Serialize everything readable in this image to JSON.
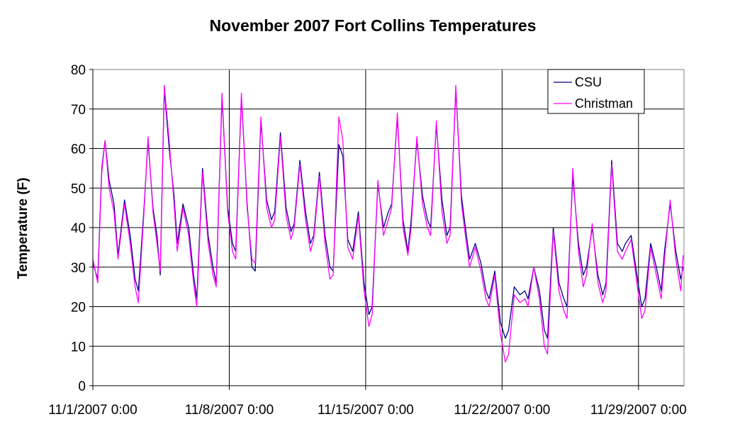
{
  "chart_data": {
    "type": "line",
    "title": "November 2007 Fort Collins Temperatures",
    "ylabel": "Temperature (F)",
    "xlabel": "",
    "ylim": [
      0,
      80
    ],
    "xlim": [
      "11/1/2007 0:00",
      "12/1/2007 8:00"
    ],
    "y_ticks": [
      "0",
      "10",
      "20",
      "30",
      "40",
      "50",
      "60",
      "70",
      "80"
    ],
    "x_ticks": [
      "11/1/2007 0:00",
      "11/8/2007 0:00",
      "11/15/2007 0:00",
      "11/22/2007 0:00",
      "11/29/2007 0:00"
    ],
    "grid": true,
    "legend_position": "top-right",
    "legend": [
      "CSU",
      "Christman"
    ],
    "series": [
      {
        "name": "CSU",
        "color": "#000080",
        "points": [
          [
            "11/1/2007 0:00",
            31
          ],
          [
            "11/1/2007 6:00",
            27
          ],
          [
            "11/1/2007 11:00",
            55
          ],
          [
            "11/1/2007 15:00",
            62
          ],
          [
            "11/1/2007 20:00",
            52
          ],
          [
            "11/2/2007 2:00",
            46
          ],
          [
            "11/2/2007 7:00",
            33
          ],
          [
            "11/2/2007 15:00",
            47
          ],
          [
            "11/2/2007 22:00",
            38
          ],
          [
            "11/3/2007 4:00",
            27
          ],
          [
            "11/3/2007 8:00",
            24
          ],
          [
            "11/3/2007 15:00",
            45
          ],
          [
            "11/3/2007 20:00",
            62
          ],
          [
            "11/4/2007 2:00",
            45
          ],
          [
            "11/4/2007 7:00",
            38
          ],
          [
            "11/4/2007 11:00",
            28
          ],
          [
            "11/4/2007 16:00",
            75
          ],
          [
            "11/4/2007 22:00",
            60
          ],
          [
            "11/5/2007 4:00",
            48
          ],
          [
            "11/5/2007 8:00",
            36
          ],
          [
            "11/5/2007 15:00",
            46
          ],
          [
            "11/5/2007 22:00",
            40
          ],
          [
            "11/6/2007 4:00",
            28
          ],
          [
            "11/6/2007 8:00",
            22
          ],
          [
            "11/6/2007 15:00",
            55
          ],
          [
            "11/6/2007 22:00",
            38
          ],
          [
            "11/7/2007 4:00",
            30
          ],
          [
            "11/7/2007 8:00",
            26
          ],
          [
            "11/7/2007 15:00",
            73
          ],
          [
            "11/7/2007 22:00",
            45
          ],
          [
            "11/8/2007 4:00",
            36
          ],
          [
            "11/8/2007 8:00",
            34
          ],
          [
            "11/8/2007 15:00",
            73
          ],
          [
            "11/8/2007 22:00",
            46
          ],
          [
            "11/9/2007 4:00",
            30
          ],
          [
            "11/9/2007 8:00",
            29
          ],
          [
            "11/9/2007 15:00",
            67
          ],
          [
            "11/9/2007 22:00",
            47
          ],
          [
            "11/10/2007 4:00",
            42
          ],
          [
            "11/10/2007 8:00",
            44
          ],
          [
            "11/10/2007 15:00",
            64
          ],
          [
            "11/10/2007 22:00",
            45
          ],
          [
            "11/11/2007 4:00",
            39
          ],
          [
            "11/11/2007 8:00",
            41
          ],
          [
            "11/11/2007 15:00",
            57
          ],
          [
            "11/11/2007 22:00",
            44
          ],
          [
            "11/12/2007 4:00",
            36
          ],
          [
            "11/12/2007 8:00",
            38
          ],
          [
            "11/12/2007 15:00",
            54
          ],
          [
            "11/12/2007 22:00",
            38
          ],
          [
            "11/13/2007 4:00",
            30
          ],
          [
            "11/13/2007 8:00",
            29
          ],
          [
            "11/13/2007 15:00",
            61
          ],
          [
            "11/13/2007 20:00",
            58
          ],
          [
            "11/14/2007 2:00",
            37
          ],
          [
            "11/14/2007 8:00",
            34
          ],
          [
            "11/14/2007 15:00",
            44
          ],
          [
            "11/14/2007 22:00",
            26
          ],
          [
            "11/15/2007 4:00",
            18
          ],
          [
            "11/15/2007 8:00",
            20
          ],
          [
            "11/15/2007 15:00",
            51
          ],
          [
            "11/15/2007 22:00",
            40
          ],
          [
            "11/16/2007 4:00",
            44
          ],
          [
            "11/16/2007 8:00",
            46
          ],
          [
            "11/16/2007 15:00",
            68
          ],
          [
            "11/16/2007 22:00",
            42
          ],
          [
            "11/17/2007 4:00",
            34
          ],
          [
            "11/17/2007 8:00",
            42
          ],
          [
            "11/17/2007 15:00",
            62
          ],
          [
            "11/17/2007 22:00",
            48
          ],
          [
            "11/18/2007 4:00",
            42
          ],
          [
            "11/18/2007 8:00",
            40
          ],
          [
            "11/18/2007 15:00",
            66
          ],
          [
            "11/18/2007 22:00",
            47
          ],
          [
            "11/19/2007 4:00",
            38
          ],
          [
            "11/19/2007 8:00",
            40
          ],
          [
            "11/19/2007 15:00",
            75
          ],
          [
            "11/19/2007 22:00",
            48
          ],
          [
            "11/20/2007 4:00",
            38
          ],
          [
            "11/20/2007 8:00",
            32
          ],
          [
            "11/20/2007 15:00",
            36
          ],
          [
            "11/20/2007 22:00",
            31
          ],
          [
            "11/21/2007 4:00",
            24
          ],
          [
            "11/21/2007 8:00",
            22
          ],
          [
            "11/21/2007 15:00",
            29
          ],
          [
            "11/21/2007 22:00",
            16
          ],
          [
            "11/22/2007 4:00",
            12
          ],
          [
            "11/22/2007 8:00",
            14
          ],
          [
            "11/22/2007 15:00",
            25
          ],
          [
            "11/22/2007 22:00",
            23
          ],
          [
            "11/23/2007 4:00",
            24
          ],
          [
            "11/23/2007 8:00",
            22
          ],
          [
            "11/23/2007 15:00",
            30
          ],
          [
            "11/23/2007 22:00",
            24
          ],
          [
            "11/24/2007 4:00",
            14
          ],
          [
            "11/24/2007 8:00",
            12
          ],
          [
            "11/24/2007 15:00",
            40
          ],
          [
            "11/24/2007 22:00",
            26
          ],
          [
            "11/25/2007 4:00",
            22
          ],
          [
            "11/25/2007 8:00",
            20
          ],
          [
            "11/25/2007 15:00",
            53
          ],
          [
            "11/25/2007 22:00",
            36
          ],
          [
            "11/26/2007 4:00",
            28
          ],
          [
            "11/26/2007 8:00",
            30
          ],
          [
            "11/26/2007 15:00",
            40
          ],
          [
            "11/26/2007 22:00",
            28
          ],
          [
            "11/27/2007 4:00",
            23
          ],
          [
            "11/27/2007 8:00",
            26
          ],
          [
            "11/27/2007 15:00",
            57
          ],
          [
            "11/27/2007 22:00",
            36
          ],
          [
            "11/28/2007 4:00",
            34
          ],
          [
            "11/28/2007 8:00",
            36
          ],
          [
            "11/28/2007 15:00",
            38
          ],
          [
            "11/28/2007 22:00",
            28
          ],
          [
            "11/29/2007 4:00",
            20
          ],
          [
            "11/29/2007 8:00",
            22
          ],
          [
            "11/29/2007 15:00",
            36
          ],
          [
            "11/29/2007 22:00",
            30
          ],
          [
            "11/30/2007 4:00",
            24
          ],
          [
            "11/30/2007 8:00",
            34
          ],
          [
            "11/30/2007 15:00",
            46
          ],
          [
            "11/30/2007 22:00",
            34
          ],
          [
            "12/1/2007 4:00",
            27
          ],
          [
            "12/1/2007 7:00",
            30
          ]
        ]
      },
      {
        "name": "Christman",
        "color": "#ff00ff",
        "points": [
          [
            "11/1/2007 0:00",
            32
          ],
          [
            "11/1/2007 6:00",
            26
          ],
          [
            "11/1/2007 11:00",
            54
          ],
          [
            "11/1/2007 15:00",
            62
          ],
          [
            "11/1/2007 20:00",
            50
          ],
          [
            "11/2/2007 2:00",
            44
          ],
          [
            "11/2/2007 7:00",
            32
          ],
          [
            "11/2/2007 15:00",
            46
          ],
          [
            "11/2/2007 22:00",
            36
          ],
          [
            "11/3/2007 4:00",
            25
          ],
          [
            "11/3/2007 8:00",
            21
          ],
          [
            "11/3/2007 15:00",
            44
          ],
          [
            "11/3/2007 20:00",
            63
          ],
          [
            "11/4/2007 2:00",
            44
          ],
          [
            "11/4/2007 7:00",
            36
          ],
          [
            "11/4/2007 11:00",
            29
          ],
          [
            "11/4/2007 16:00",
            76
          ],
          [
            "11/4/2007 22:00",
            62
          ],
          [
            "11/5/2007 4:00",
            46
          ],
          [
            "11/5/2007 8:00",
            34
          ],
          [
            "11/5/2007 15:00",
            45
          ],
          [
            "11/5/2007 22:00",
            38
          ],
          [
            "11/6/2007 4:00",
            26
          ],
          [
            "11/6/2007 8:00",
            20
          ],
          [
            "11/6/2007 15:00",
            54
          ],
          [
            "11/6/2007 22:00",
            36
          ],
          [
            "11/7/2007 4:00",
            28
          ],
          [
            "11/7/2007 8:00",
            25
          ],
          [
            "11/7/2007 15:00",
            74
          ],
          [
            "11/7/2007 22:00",
            44
          ],
          [
            "11/8/2007 4:00",
            34
          ],
          [
            "11/8/2007 8:00",
            32
          ],
          [
            "11/8/2007 15:00",
            74
          ],
          [
            "11/8/2007 22:00",
            45
          ],
          [
            "11/9/2007 4:00",
            32
          ],
          [
            "11/9/2007 8:00",
            31
          ],
          [
            "11/9/2007 15:00",
            68
          ],
          [
            "11/9/2007 22:00",
            45
          ],
          [
            "11/10/2007 4:00",
            40
          ],
          [
            "11/10/2007 8:00",
            42
          ],
          [
            "11/10/2007 15:00",
            63
          ],
          [
            "11/10/2007 22:00",
            43
          ],
          [
            "11/11/2007 4:00",
            37
          ],
          [
            "11/11/2007 8:00",
            40
          ],
          [
            "11/11/2007 15:00",
            56
          ],
          [
            "11/11/2007 22:00",
            42
          ],
          [
            "11/12/2007 4:00",
            34
          ],
          [
            "11/12/2007 8:00",
            37
          ],
          [
            "11/12/2007 15:00",
            53
          ],
          [
            "11/12/2007 22:00",
            36
          ],
          [
            "11/13/2007 4:00",
            27
          ],
          [
            "11/13/2007 8:00",
            28
          ],
          [
            "11/13/2007 15:00",
            68
          ],
          [
            "11/13/2007 20:00",
            62
          ],
          [
            "11/14/2007 2:00",
            35
          ],
          [
            "11/14/2007 8:00",
            32
          ],
          [
            "11/14/2007 15:00",
            43
          ],
          [
            "11/14/2007 22:00",
            24
          ],
          [
            "11/15/2007 4:00",
            15
          ],
          [
            "11/15/2007 8:00",
            18
          ],
          [
            "11/15/2007 15:00",
            52
          ],
          [
            "11/15/2007 22:00",
            38
          ],
          [
            "11/16/2007 4:00",
            42
          ],
          [
            "11/16/2007 8:00",
            45
          ],
          [
            "11/16/2007 15:00",
            69
          ],
          [
            "11/16/2007 22:00",
            40
          ],
          [
            "11/17/2007 4:00",
            33
          ],
          [
            "11/17/2007 8:00",
            40
          ],
          [
            "11/17/2007 15:00",
            63
          ],
          [
            "11/17/2007 22:00",
            46
          ],
          [
            "11/18/2007 4:00",
            40
          ],
          [
            "11/18/2007 8:00",
            38
          ],
          [
            "11/18/2007 15:00",
            67
          ],
          [
            "11/18/2007 22:00",
            44
          ],
          [
            "11/19/2007 4:00",
            36
          ],
          [
            "11/19/2007 8:00",
            38
          ],
          [
            "11/19/2007 15:00",
            76
          ],
          [
            "11/19/2007 22:00",
            46
          ],
          [
            "11/20/2007 4:00",
            36
          ],
          [
            "11/20/2007 8:00",
            30
          ],
          [
            "11/20/2007 15:00",
            35
          ],
          [
            "11/20/2007 22:00",
            29
          ],
          [
            "11/21/2007 4:00",
            22
          ],
          [
            "11/21/2007 8:00",
            20
          ],
          [
            "11/21/2007 15:00",
            28
          ],
          [
            "11/21/2007 22:00",
            13
          ],
          [
            "11/22/2007 4:00",
            6
          ],
          [
            "11/22/2007 8:00",
            8
          ],
          [
            "11/22/2007 15:00",
            23
          ],
          [
            "11/22/2007 22:00",
            21
          ],
          [
            "11/23/2007 4:00",
            22
          ],
          [
            "11/23/2007 8:00",
            20
          ],
          [
            "11/23/2007 15:00",
            30
          ],
          [
            "11/23/2007 22:00",
            22
          ],
          [
            "11/24/2007 4:00",
            10
          ],
          [
            "11/24/2007 8:00",
            8
          ],
          [
            "11/24/2007 15:00",
            39
          ],
          [
            "11/24/2007 22:00",
            24
          ],
          [
            "11/25/2007 4:00",
            19
          ],
          [
            "11/25/2007 8:00",
            17
          ],
          [
            "11/25/2007 15:00",
            55
          ],
          [
            "11/25/2007 22:00",
            34
          ],
          [
            "11/26/2007 4:00",
            25
          ],
          [
            "11/26/2007 8:00",
            28
          ],
          [
            "11/26/2007 15:00",
            41
          ],
          [
            "11/26/2007 22:00",
            26
          ],
          [
            "11/27/2007 4:00",
            21
          ],
          [
            "11/27/2007 8:00",
            24
          ],
          [
            "11/27/2007 15:00",
            56
          ],
          [
            "11/27/2007 22:00",
            34
          ],
          [
            "11/28/2007 4:00",
            32
          ],
          [
            "11/28/2007 8:00",
            34
          ],
          [
            "11/28/2007 15:00",
            37
          ],
          [
            "11/28/2007 22:00",
            26
          ],
          [
            "11/29/2007 4:00",
            17
          ],
          [
            "11/29/2007 8:00",
            19
          ],
          [
            "11/29/2007 15:00",
            35
          ],
          [
            "11/29/2007 22:00",
            28
          ],
          [
            "11/30/2007 4:00",
            22
          ],
          [
            "11/30/2007 8:00",
            32
          ],
          [
            "11/30/2007 15:00",
            47
          ],
          [
            "11/30/2007 22:00",
            32
          ],
          [
            "12/1/2007 4:00",
            24
          ],
          [
            "12/1/2007 7:00",
            33
          ]
        ]
      }
    ]
  }
}
